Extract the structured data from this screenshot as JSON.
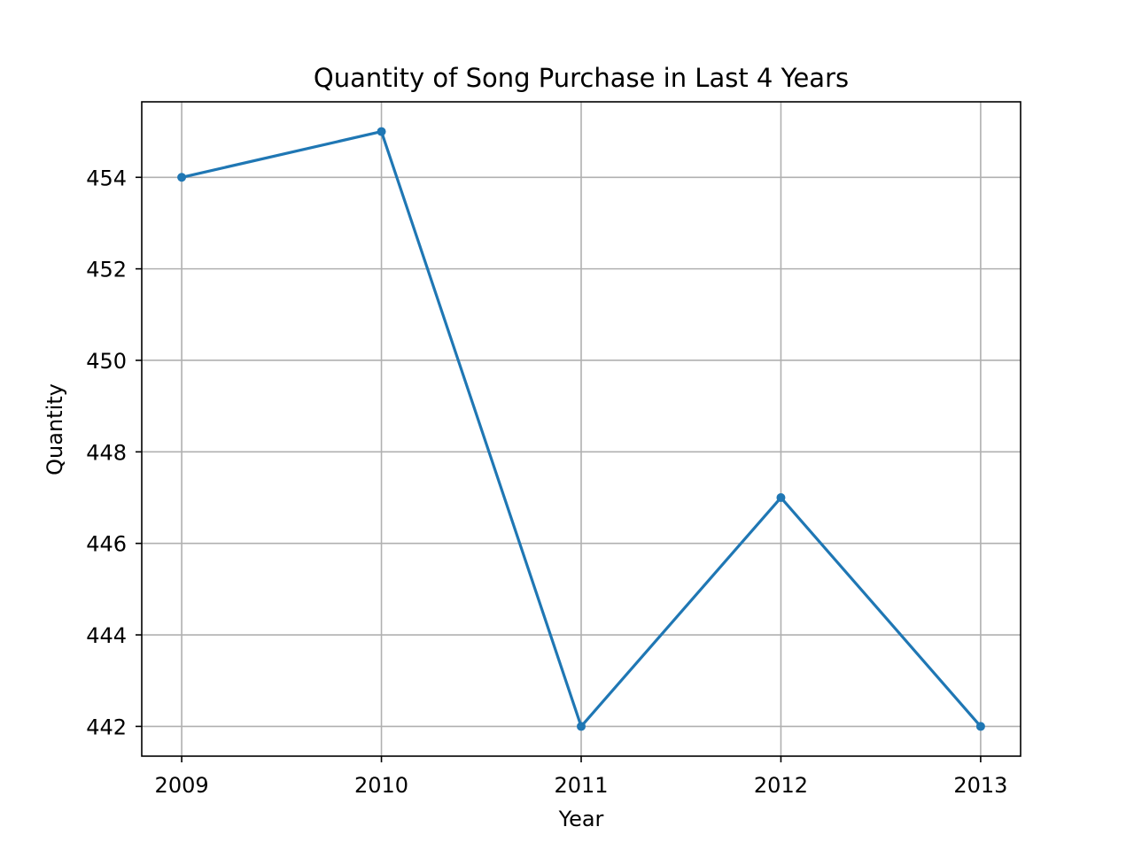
{
  "chart_data": {
    "type": "line",
    "title": "Quantity of Song Purchase in Last 4 Years",
    "xlabel": "Year",
    "ylabel": "Quantity",
    "x": [
      2009,
      2010,
      2011,
      2012,
      2013
    ],
    "x_tick_labels": [
      "2009",
      "2010",
      "2011",
      "2012",
      "2013"
    ],
    "series": [
      {
        "values": [
          454,
          455,
          442,
          447,
          442
        ]
      }
    ],
    "xlim": [
      2008.8,
      2013.2
    ],
    "ylim": [
      441.35,
      455.65
    ],
    "y_ticks": [
      442,
      444,
      446,
      448,
      450,
      452,
      454
    ],
    "y_tick_labels": [
      "442",
      "444",
      "446",
      "448",
      "450",
      "452",
      "454"
    ],
    "grid": true,
    "marker": "circle",
    "colors": {
      "line": "#1f77b4",
      "grid": "#b0b0b0",
      "axes": "#000000"
    }
  }
}
